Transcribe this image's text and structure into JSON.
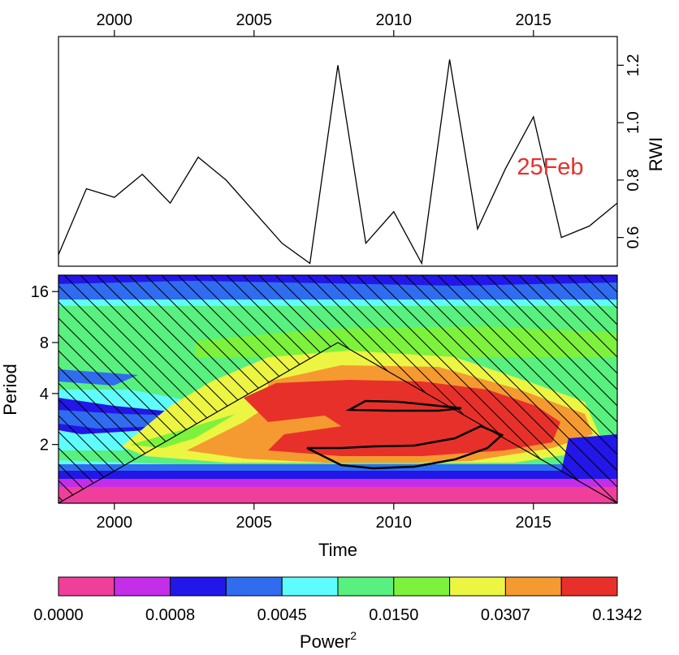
{
  "chart_data": [
    {
      "type": "line",
      "panel": "time-series",
      "x": [
        1998,
        1999,
        2000,
        2001,
        2002,
        2003,
        2004,
        2005,
        2006,
        2007,
        2008,
        2009,
        2010,
        2011,
        2012,
        2013,
        2014,
        2015,
        2016,
        2017,
        2018
      ],
      "values": [
        0.54,
        0.77,
        0.74,
        0.82,
        0.72,
        0.88,
        0.8,
        0.69,
        0.58,
        0.51,
        1.2,
        0.58,
        0.69,
        0.51,
        1.22,
        0.63,
        0.84,
        1.02,
        0.6,
        0.64,
        0.72
      ],
      "xlim": [
        1998,
        2018
      ],
      "ylim": [
        0.5,
        1.3
      ],
      "xticks": [
        2000,
        2005,
        2010,
        2015
      ],
      "yticks": [
        0.6,
        0.8,
        1.0,
        1.2
      ],
      "ytick_labels": [
        "0.6",
        "0.8",
        "1.0",
        "1.2"
      ],
      "xtick_labels": [
        "2000",
        "2005",
        "2010",
        "2015"
      ],
      "xaxis_position": "top",
      "yaxis_position": "right",
      "ylabel": "RWI",
      "annotation": {
        "text": "25Feb",
        "color": "#e8302a",
        "x": 2015.6,
        "y": 0.82
      },
      "line_color": "#000000"
    },
    {
      "type": "heatmap",
      "panel": "wavelet-power",
      "xlabel": "Time",
      "ylabel": "Period",
      "xlim": [
        1998,
        2018
      ],
      "period_range": [
        0.9,
        20
      ],
      "log2_scale": true,
      "xticks": [
        2000,
        2005,
        2010,
        2015
      ],
      "xtick_labels": [
        "2000",
        "2005",
        "2010",
        "2015"
      ],
      "yticks": [
        2,
        4,
        8,
        16
      ],
      "ytick_labels": [
        "2",
        "4",
        "8",
        "16"
      ],
      "bands": [
        {
          "level": 0,
          "color": "#f03f9b"
        },
        {
          "level": 1,
          "color": "#c42ee8"
        },
        {
          "level": 2,
          "color": "#2316e8"
        },
        {
          "level": 3,
          "color": "#2f6cf0"
        },
        {
          "level": 4,
          "color": "#5efcfc"
        },
        {
          "level": 5,
          "color": "#58f07e"
        },
        {
          "level": 6,
          "color": "#7df23c"
        },
        {
          "level": 7,
          "color": "#ecf542"
        },
        {
          "level": 8,
          "color": "#f59a30"
        },
        {
          "level": 9,
          "color": "#e8302a"
        }
      ],
      "cone_of_influence": {
        "peak_year": 2008,
        "peak_period": 8
      },
      "significance_contours": 2
    },
    {
      "type": "colorbar",
      "label": "Power",
      "label_superscript": "2",
      "colors": [
        "#f03f9b",
        "#c42ee8",
        "#2316e8",
        "#2f6cf0",
        "#5efcfc",
        "#58f07e",
        "#7df23c",
        "#ecf542",
        "#f59a30",
        "#e8302a"
      ],
      "tick_labels": [
        "0.0000",
        "0.0008",
        "0.0045",
        "0.0150",
        "0.0307",
        "0.1342"
      ]
    }
  ]
}
